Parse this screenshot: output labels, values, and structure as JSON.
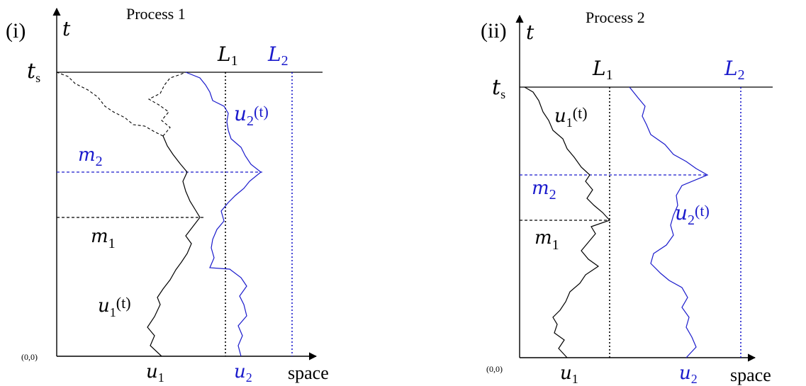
{
  "panels": [
    {
      "panel_label": "(i)",
      "title": "Process 1",
      "t_axis": "t",
      "t_start": "t",
      "t_start_sub": "s",
      "origin": "(0,0)",
      "x_axis": "space",
      "L1": "L",
      "L1_sub": "1",
      "L2": "L",
      "L2_sub": "2",
      "m2": "m",
      "m2_sub": "2",
      "m1": "m",
      "m1_sub": "1",
      "u1_path": "u",
      "u1_path_sub": "1",
      "u1_path_arg": "(t)",
      "u2_path": "u",
      "u2_path_sub": "2",
      "u2_path_arg": "(t)",
      "u1_start": "u",
      "u1_start_sub": "1",
      "u2_start": "u",
      "u2_start_sub": "2"
    },
    {
      "panel_label": "(ii)",
      "title": "Process 2",
      "t_axis": "t",
      "t_start": "t",
      "t_start_sub": "s",
      "origin": "(0,0)",
      "x_axis": "space",
      "L1": "L",
      "L1_sub": "1",
      "L2": "L",
      "L2_sub": "2",
      "m2": "m",
      "m2_sub": "2",
      "m1": "m",
      "m1_sub": "1",
      "u1_path": "u",
      "u1_path_sub": "1",
      "u1_path_arg": "(t)",
      "u2_path": "u",
      "u2_path_sub": "2",
      "u2_path_arg": "(t)",
      "u1_start": "u",
      "u1_start_sub": "1",
      "u2_start": "u",
      "u2_start_sub": "2"
    }
  ],
  "colors": {
    "u1": "#000000",
    "u2": "#1a1acc"
  }
}
